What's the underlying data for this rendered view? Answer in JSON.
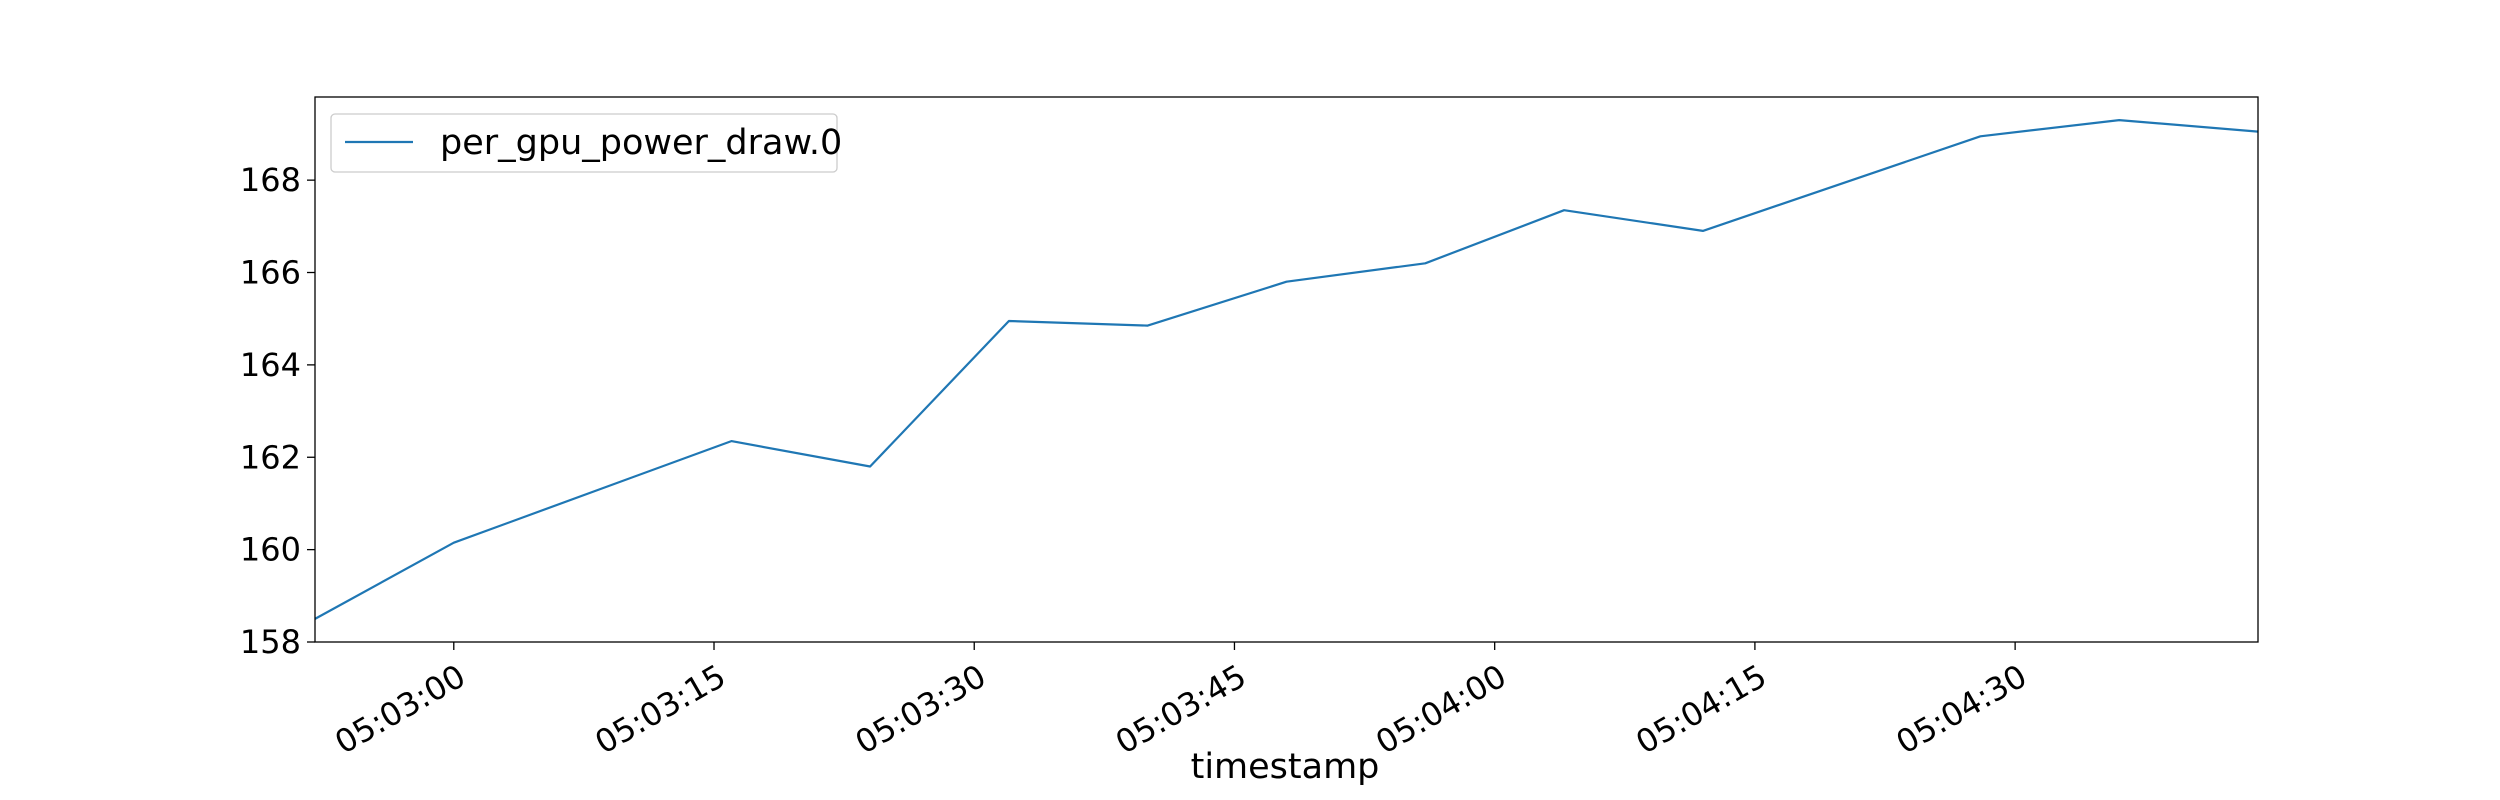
{
  "chart_data": {
    "type": "line",
    "title": "",
    "xlabel": "timestamp",
    "ylabel": "",
    "x_tick_labels": [
      "05:03:00",
      "05:03:15",
      "05:03:30",
      "05:03:45",
      "05:04:00",
      "05:04:15",
      "05:04:30"
    ],
    "x_tick_times": [
      "05:03:00",
      "05:03:15",
      "05:03:30",
      "05:03:45",
      "05:04:00",
      "05:04:15",
      "05:04:30"
    ],
    "xlim": [
      "05:02:52",
      "05:04:44"
    ],
    "ylim": [
      158,
      169.8
    ],
    "y_ticks": [
      158,
      160,
      162,
      164,
      166,
      168
    ],
    "legend_position": "upper-left",
    "grid": false,
    "series": [
      {
        "name": "per_gpu_power_draw.0",
        "color": "#1f77b4",
        "points": [
          {
            "x": "05:02:52",
            "y": 158.5
          },
          {
            "x": "05:03:00",
            "y": 160.15
          },
          {
            "x": "05:03:16",
            "y": 162.35
          },
          {
            "x": "05:03:24",
            "y": 161.8
          },
          {
            "x": "05:03:32",
            "y": 164.95
          },
          {
            "x": "05:03:40",
            "y": 164.85
          },
          {
            "x": "05:03:48",
            "y": 165.8
          },
          {
            "x": "05:03:56",
            "y": 166.2
          },
          {
            "x": "05:04:04",
            "y": 167.35
          },
          {
            "x": "05:04:12",
            "y": 166.9
          },
          {
            "x": "05:04:28",
            "y": 168.95
          },
          {
            "x": "05:04:36",
            "y": 169.3
          },
          {
            "x": "05:04:44",
            "y": 169.05
          }
        ]
      }
    ]
  }
}
